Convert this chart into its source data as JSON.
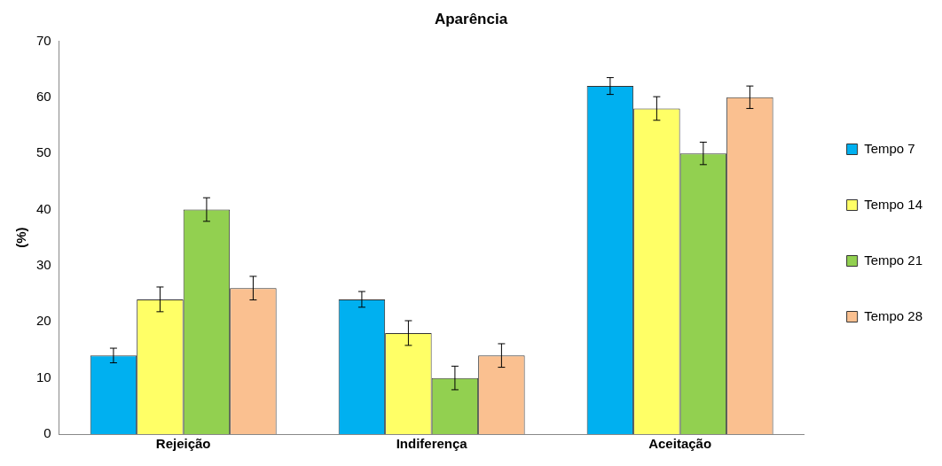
{
  "chart_data": {
    "type": "bar",
    "title": "Aparência",
    "ylabel": "(%)",
    "categories": [
      "Rejeição",
      "Indiferença",
      "Aceitação"
    ],
    "series": [
      {
        "name": "Tempo 7",
        "color": "#00b0f0",
        "values": [
          14,
          24,
          62
        ],
        "errors": [
          1.3,
          1.4,
          1.5
        ]
      },
      {
        "name": "Tempo 14",
        "color": "#ffff66",
        "values": [
          24,
          18,
          58
        ],
        "errors": [
          2.2,
          2.2,
          2.1
        ]
      },
      {
        "name": "Tempo 21",
        "color": "#92d050",
        "values": [
          40,
          10,
          50
        ],
        "errors": [
          2.1,
          2.1,
          2
        ]
      },
      {
        "name": "Tempo 28",
        "color": "#fac090",
        "values": [
          26,
          14,
          60
        ],
        "errors": [
          2.1,
          2.1,
          2
        ]
      }
    ],
    "ylim": [
      0,
      70
    ],
    "yticks": [
      0,
      10,
      20,
      30,
      40,
      50,
      60,
      70
    ],
    "grid": false,
    "legend": "right"
  }
}
